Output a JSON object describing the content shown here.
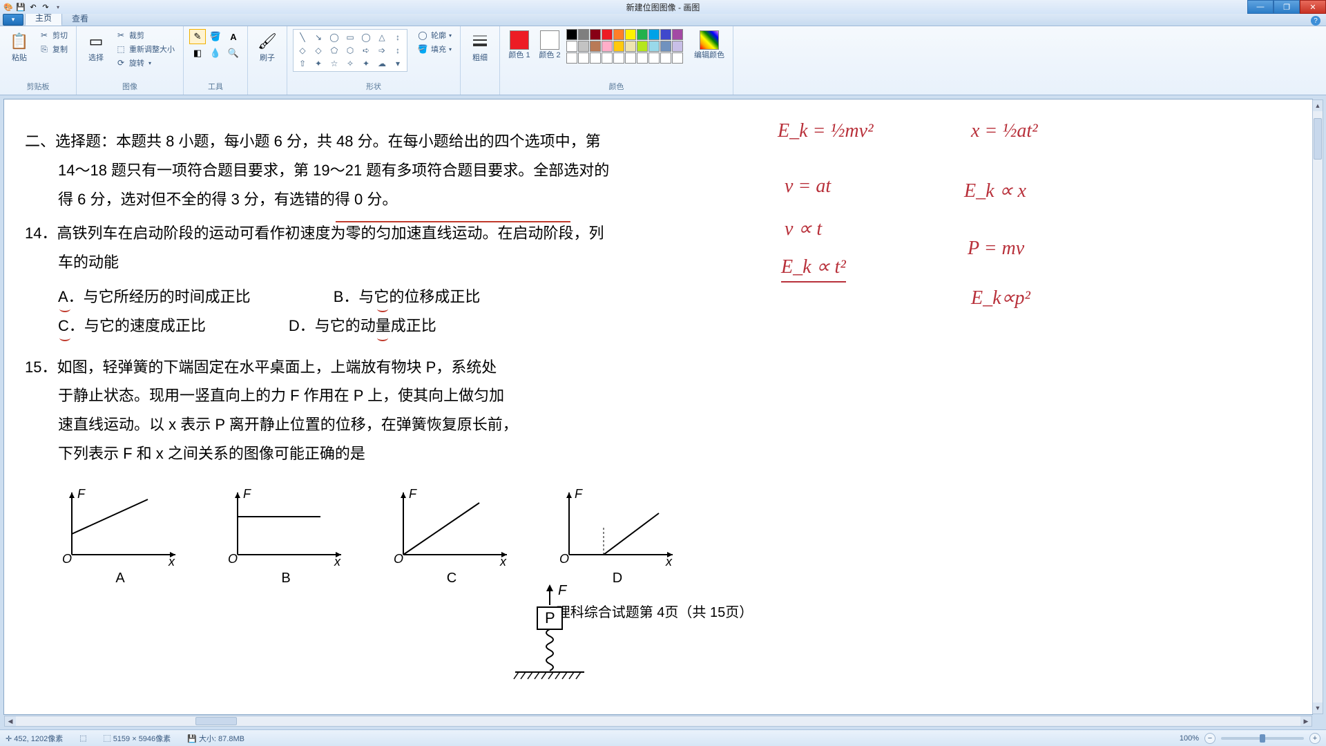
{
  "app": {
    "title": "新建位图图像 - 画图"
  },
  "tabs": {
    "home": "主页",
    "view": "查看"
  },
  "ribbon": {
    "clipboard": {
      "label": "剪贴板",
      "paste": "粘贴",
      "cut": "剪切",
      "copy": "复制"
    },
    "image": {
      "label": "图像",
      "select": "选择",
      "crop": "裁剪",
      "resize": "重新调整大小",
      "rotate": "旋转"
    },
    "tools": {
      "label": "工具"
    },
    "brushes": {
      "label": "刷子"
    },
    "shapes": {
      "label": "形状",
      "outline": "轮廓",
      "fill": "填充"
    },
    "size": {
      "label": "粗细"
    },
    "colors": {
      "label": "颜色",
      "c1": "颜色 1",
      "c2": "颜色 2",
      "edit": "编辑颜色"
    }
  },
  "palette": {
    "row1": [
      "#000000",
      "#7f7f7f",
      "#880015",
      "#ed1c24",
      "#ff7f27",
      "#fff200",
      "#22b14c",
      "#00a2e8",
      "#3f48cc",
      "#a349a4"
    ],
    "row2": [
      "#ffffff",
      "#c3c3c3",
      "#b97a57",
      "#ffaec9",
      "#ffc90e",
      "#efe4b0",
      "#b5e61d",
      "#99d9ea",
      "#7092be",
      "#c8bfe7"
    ],
    "row3": [
      "#ffffff",
      "#ffffff",
      "#ffffff",
      "#ffffff",
      "#ffffff",
      "#ffffff",
      "#ffffff",
      "#ffffff",
      "#ffffff",
      "#ffffff"
    ]
  },
  "doc": {
    "heading": "二、选择题：本题共 8 小题，每小题 6 分，共 48 分。在每小题给出的四个选项中，第",
    "heading2": "14～18 题只有一项符合题目要求，第 19～21 题有多项符合题目要求。全部选对的",
    "heading3": "得 6 分，选对但不全的得 3 分，有选错的得 0 分。",
    "q14": "14．高铁列车在启动阶段的运动可看作初速度为零的匀加速直线运动。在启动阶段，列",
    "q14b": "车的动能",
    "q14A": "A．与它所经历的时间成正比",
    "q14B": "B．与它的位移成正比",
    "q14C": "C．与它的速度成正比",
    "q14D": "D．与它的动量成正比",
    "q15a": "15．如图，轻弹簧的下端固定在水平桌面上，上端放有物块 P，系统处",
    "q15b": "于静止状态。现用一竖直向上的力 F 作用在 P 上，使其向上做匀加",
    "q15c": "速直线运动。以 x 表示 P 离开静止位置的位移，在弹簧恢复原长前，",
    "q15d": "下列表示 F 和 x 之间关系的图像可能正确的是",
    "gA": "A",
    "gB": "B",
    "gC": "C",
    "gD": "D",
    "footer": "理科综合试题第 4页（共 15页）"
  },
  "annot": {
    "a1": "E_k = ½mv²",
    "a2": "x = ½at²",
    "a3": "v = at",
    "a4": "E_k ∝ x",
    "a5": "v ∝ t",
    "a6": "E_k ∝ t²",
    "a7": "P = mv",
    "a8": "E_k∝p²"
  },
  "status": {
    "coords": "452, 1202像素",
    "dims": "5159 × 5946像素",
    "size": "大小: 87.8MB",
    "zoom": "100%"
  }
}
